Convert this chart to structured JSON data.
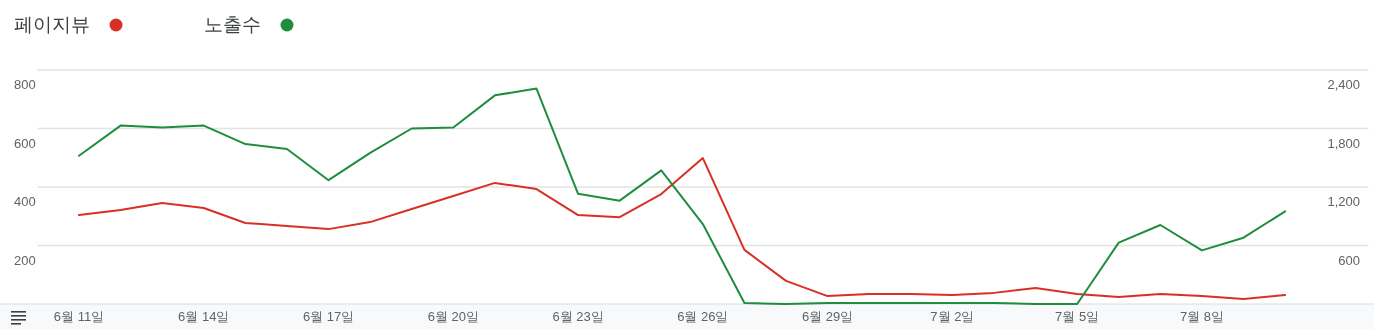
{
  "chart_data": {
    "type": "line",
    "x": [
      "--06-11",
      "--06-12",
      "--06-13",
      "--06-14",
      "--06-15",
      "--06-16",
      "--06-17",
      "--06-18",
      "--06-19",
      "--06-20",
      "--06-21",
      "--06-22",
      "--06-23",
      "--06-24",
      "--06-25",
      "--06-26",
      "--06-27",
      "--06-28",
      "--06-29",
      "--06-30",
      "--07-01",
      "--07-02",
      "--07-03",
      "--07-04",
      "--07-05",
      "--07-06",
      "--07-07",
      "--07-08",
      "--07-09",
      "--07-10"
    ],
    "series": [
      {
        "name": "페이지뷰",
        "color": "#d93025",
        "values": [
          304,
          321,
          345,
          328,
          277,
          267,
          256,
          280,
          325,
          369,
          414,
          393,
          304,
          297,
          376,
          499,
          185,
          79,
          27,
          34,
          34,
          31,
          38,
          55,
          34,
          24,
          34,
          27,
          17,
          31
        ]
      },
      {
        "name": "노출수",
        "color": "#1e8e3e",
        "axis": "y2",
        "values": [
          1520,
          1830,
          1810,
          1830,
          1640,
          1590,
          1270,
          1550,
          1800,
          1810,
          2140,
          2210,
          1130,
          1060,
          1370,
          820,
          10,
          0,
          10,
          10,
          10,
          10,
          10,
          0,
          0,
          630,
          810,
          550,
          680,
          950
        ]
      }
    ],
    "xlim": [
      "--06-10",
      "--07-12"
    ],
    "xticks": [
      {
        "value": "--06-11",
        "label": "6월 11일"
      },
      {
        "value": "--06-14",
        "label": "6월 14일"
      },
      {
        "value": "--06-17",
        "label": "6월 17일"
      },
      {
        "value": "--06-20",
        "label": "6월 20일"
      },
      {
        "value": "--06-23",
        "label": "6월 23일"
      },
      {
        "value": "--06-26",
        "label": "6월 26일"
      },
      {
        "value": "--06-29",
        "label": "6월 29일"
      },
      {
        "value": "--07-02",
        "label": "7월 2일"
      },
      {
        "value": "--07-05",
        "label": "7월 5일"
      },
      {
        "value": "--07-08",
        "label": "7월 8일"
      }
    ],
    "ylim": [
      0,
      800
    ],
    "yticks": [
      200,
      400,
      600,
      800
    ],
    "y2lim": [
      0,
      2400
    ],
    "y2ticks": [
      600,
      {
        "value": 1200,
        "label": "1,200"
      },
      {
        "value": 1800,
        "label": "1,800"
      },
      {
        "value": 2400,
        "label": "2,400"
      }
    ],
    "grid": "y",
    "legend": "top left",
    "marker": "none",
    "line_style": "solid"
  }
}
